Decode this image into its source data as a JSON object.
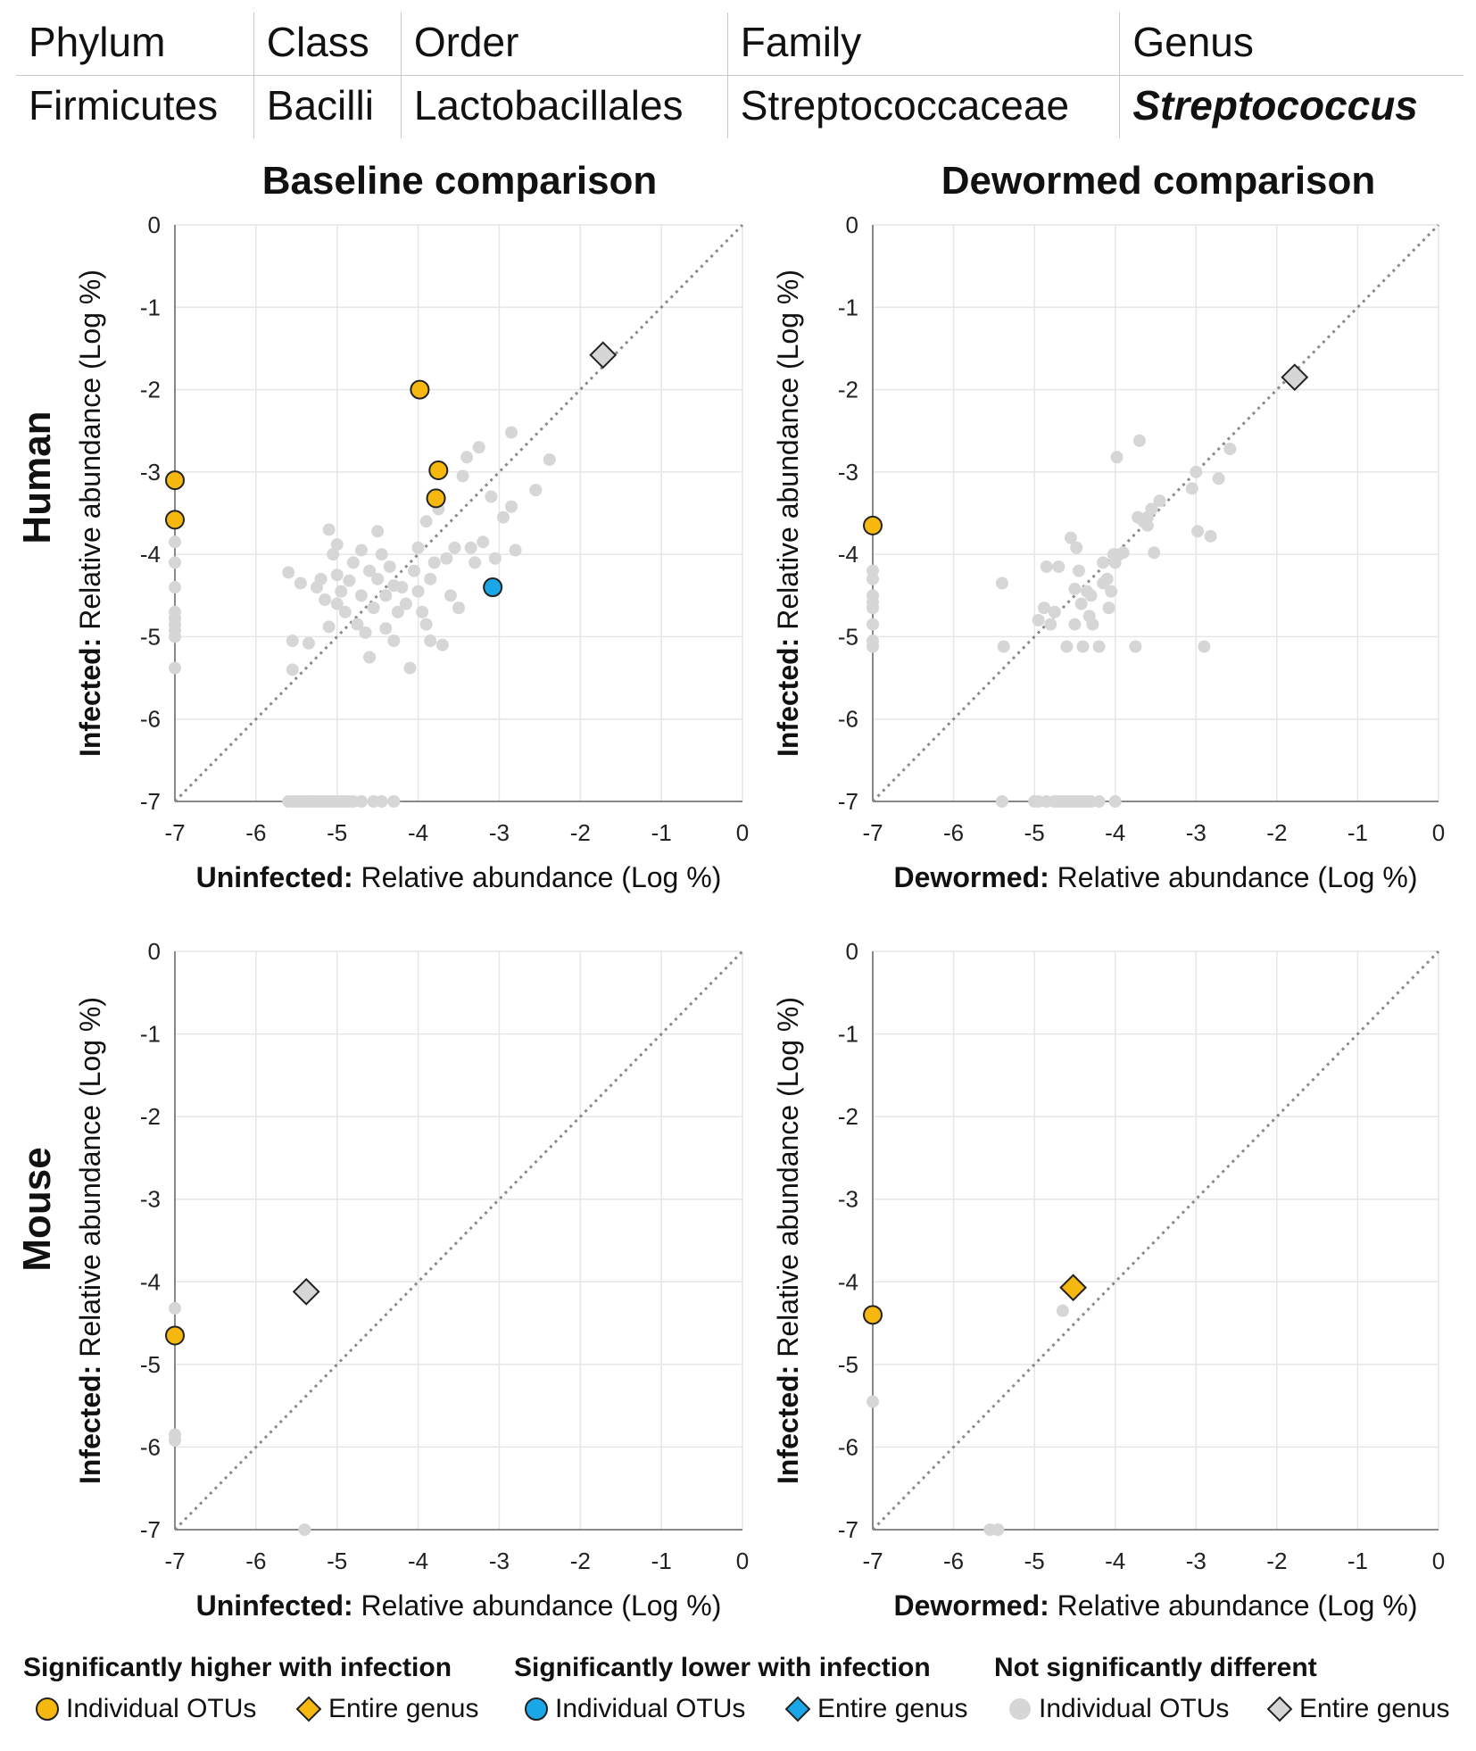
{
  "taxonomy": {
    "headers": [
      "Phylum",
      "Class",
      "Order",
      "Family",
      "Genus"
    ],
    "values": [
      "Firmicutes",
      "Bacilli",
      "Lactobacillales",
      "Streptococcaceae",
      "Streptococcus"
    ]
  },
  "column_titles": [
    "Baseline comparison",
    "Dewormed comparison"
  ],
  "row_titles": [
    "Human",
    "Mouse"
  ],
  "axis": {
    "y_bold": "Infected:",
    "y_rest": " Relative abundance (Log %)",
    "ticks": [
      -7,
      -6,
      -5,
      -4,
      -3,
      -2,
      -1,
      0
    ]
  },
  "colors": {
    "sig_higher": "#F6B80F",
    "sig_lower": "#1AA7E8",
    "not_sig": "#D6D6D6",
    "diagonal": "#8a8a8a",
    "grid": "#e6e6e6"
  },
  "legend": {
    "groups": [
      {
        "heading": "Significantly higher with infection",
        "otu_label": "Individual OTUs",
        "genus_label": "Entire genus",
        "color_key": "sig_higher"
      },
      {
        "heading": "Significantly lower with infection",
        "otu_label": "Individual OTUs",
        "genus_label": "Entire genus",
        "color_key": "sig_lower"
      },
      {
        "heading": "Not significantly different",
        "otu_label": "Individual OTUs",
        "genus_label": "Entire genus",
        "color_key": "not_sig"
      }
    ]
  },
  "chart_data": [
    {
      "type": "scatter",
      "title": "Human – Baseline comparison",
      "xlabel_bold": "Uninfected:",
      "xlabel_rest": " Relative abundance (Log %)",
      "ylabel_bold": "Infected:",
      "ylabel_rest": " Relative abundance (Log %)",
      "xlim": [
        -7,
        0
      ],
      "ylim": [
        -7,
        0
      ],
      "sig_higher_otus": [
        [
          -7.0,
          -3.1
        ],
        [
          -7.0,
          -3.58
        ],
        [
          -3.98,
          -2.0
        ],
        [
          -3.75,
          -2.98
        ],
        [
          -3.78,
          -3.32
        ]
      ],
      "sig_lower_otus": [
        [
          -3.08,
          -4.4
        ]
      ],
      "not_sig_otus": [
        [
          -7.0,
          -3.85
        ],
        [
          -7.0,
          -4.1
        ],
        [
          -7.0,
          -4.4
        ],
        [
          -7.0,
          -4.7
        ],
        [
          -7.0,
          -4.78
        ],
        [
          -7.0,
          -4.85
        ],
        [
          -7.0,
          -4.92
        ],
        [
          -7.0,
          -5.0
        ],
        [
          -7.0,
          -5.38
        ],
        [
          -5.6,
          -7.0
        ],
        [
          -5.55,
          -7.0
        ],
        [
          -5.5,
          -7.0
        ],
        [
          -5.45,
          -7.0
        ],
        [
          -5.4,
          -7.0
        ],
        [
          -5.35,
          -7.0
        ],
        [
          -5.3,
          -7.0
        ],
        [
          -5.25,
          -7.0
        ],
        [
          -5.2,
          -7.0
        ],
        [
          -5.15,
          -7.0
        ],
        [
          -5.1,
          -7.0
        ],
        [
          -5.05,
          -7.0
        ],
        [
          -5.0,
          -7.0
        ],
        [
          -4.95,
          -7.0
        ],
        [
          -4.9,
          -7.0
        ],
        [
          -4.85,
          -7.0
        ],
        [
          -4.8,
          -7.0
        ],
        [
          -4.7,
          -7.0
        ],
        [
          -4.55,
          -7.0
        ],
        [
          -4.45,
          -7.0
        ],
        [
          -4.3,
          -7.0
        ],
        [
          -5.6,
          -4.22
        ],
        [
          -5.55,
          -5.05
        ],
        [
          -5.55,
          -5.4
        ],
        [
          -5.35,
          -5.08
        ],
        [
          -5.25,
          -4.4
        ],
        [
          -5.2,
          -4.3
        ],
        [
          -5.15,
          -4.55
        ],
        [
          -5.1,
          -3.7
        ],
        [
          -5.1,
          -4.88
        ],
        [
          -5.05,
          -4.0
        ],
        [
          -5.0,
          -3.88
        ],
        [
          -5.0,
          -4.25
        ],
        [
          -5.0,
          -4.6
        ],
        [
          -4.95,
          -4.45
        ],
        [
          -4.9,
          -4.7
        ],
        [
          -4.85,
          -4.32
        ],
        [
          -4.8,
          -4.1
        ],
        [
          -4.75,
          -4.85
        ],
        [
          -4.7,
          -4.5
        ],
        [
          -4.65,
          -4.95
        ],
        [
          -4.6,
          -4.2
        ],
        [
          -4.55,
          -4.65
        ],
        [
          -4.5,
          -3.72
        ],
        [
          -4.5,
          -4.3
        ],
        [
          -4.45,
          -4.0
        ],
        [
          -4.4,
          -4.5
        ],
        [
          -4.4,
          -4.9
        ],
        [
          -4.35,
          -4.15
        ],
        [
          -4.3,
          -4.38
        ],
        [
          -4.3,
          -5.05
        ],
        [
          -4.25,
          -4.7
        ],
        [
          -4.2,
          -4.4
        ],
        [
          -4.15,
          -4.6
        ],
        [
          -4.1,
          -5.38
        ],
        [
          -4.05,
          -4.2
        ],
        [
          -4.0,
          -4.45
        ],
        [
          -4.0,
          -3.92
        ],
        [
          -3.95,
          -4.7
        ],
        [
          -3.9,
          -3.6
        ],
        [
          -3.85,
          -4.3
        ],
        [
          -3.85,
          -5.05
        ],
        [
          -3.8,
          -4.1
        ],
        [
          -3.75,
          -3.45
        ],
        [
          -3.7,
          -5.1
        ],
        [
          -3.65,
          -4.05
        ],
        [
          -3.6,
          -4.5
        ],
        [
          -3.55,
          -3.92
        ],
        [
          -3.5,
          -4.65
        ],
        [
          -3.45,
          -3.05
        ],
        [
          -3.4,
          -2.82
        ],
        [
          -3.35,
          -3.92
        ],
        [
          -3.3,
          -4.1
        ],
        [
          -3.25,
          -2.7
        ],
        [
          -3.2,
          -3.85
        ],
        [
          -3.1,
          -3.3
        ],
        [
          -3.05,
          -4.05
        ],
        [
          -2.95,
          -3.55
        ],
        [
          -2.85,
          -2.52
        ],
        [
          -2.85,
          -3.42
        ],
        [
          -2.8,
          -3.95
        ],
        [
          -2.55,
          -3.22
        ],
        [
          -2.38,
          -2.85
        ],
        [
          -4.6,
          -5.25
        ],
        [
          -5.45,
          -4.35
        ],
        [
          -4.7,
          -3.95
        ],
        [
          -3.9,
          -4.85
        ]
      ],
      "sig_higher_genus": [],
      "sig_lower_genus": [],
      "not_sig_genus": [
        [
          -1.72,
          -1.58
        ]
      ]
    },
    {
      "type": "scatter",
      "title": "Human – Dewormed comparison",
      "xlabel_bold": "Dewormed:",
      "xlabel_rest": " Relative abundance (Log %)",
      "ylabel_bold": "Infected:",
      "ylabel_rest": " Relative abundance (Log %)",
      "xlim": [
        -7,
        0
      ],
      "ylim": [
        -7,
        0
      ],
      "sig_higher_otus": [
        [
          -7.0,
          -3.65
        ]
      ],
      "sig_lower_otus": [],
      "not_sig_otus": [
        [
          -7.0,
          -4.2
        ],
        [
          -7.0,
          -4.3
        ],
        [
          -7.0,
          -4.5
        ],
        [
          -7.0,
          -4.58
        ],
        [
          -7.0,
          -4.65
        ],
        [
          -7.0,
          -4.85
        ],
        [
          -7.0,
          -5.05
        ],
        [
          -7.0,
          -5.12
        ],
        [
          -5.4,
          -7.0
        ],
        [
          -5.0,
          -7.0
        ],
        [
          -4.95,
          -7.0
        ],
        [
          -4.85,
          -7.0
        ],
        [
          -4.75,
          -7.0
        ],
        [
          -4.7,
          -7.0
        ],
        [
          -4.65,
          -7.0
        ],
        [
          -4.6,
          -7.0
        ],
        [
          -4.55,
          -7.0
        ],
        [
          -4.5,
          -7.0
        ],
        [
          -4.45,
          -7.0
        ],
        [
          -4.4,
          -7.0
        ],
        [
          -4.35,
          -7.0
        ],
        [
          -4.3,
          -7.0
        ],
        [
          -4.2,
          -7.0
        ],
        [
          -4.0,
          -7.0
        ],
        [
          -5.4,
          -4.35
        ],
        [
          -5.38,
          -5.12
        ],
        [
          -4.95,
          -4.8
        ],
        [
          -4.88,
          -4.65
        ],
        [
          -4.85,
          -4.15
        ],
        [
          -4.8,
          -4.85
        ],
        [
          -4.75,
          -4.7
        ],
        [
          -4.7,
          -4.15
        ],
        [
          -4.6,
          -5.12
        ],
        [
          -4.55,
          -3.8
        ],
        [
          -4.5,
          -4.42
        ],
        [
          -4.5,
          -4.85
        ],
        [
          -4.48,
          -3.92
        ],
        [
          -4.45,
          -4.2
        ],
        [
          -4.42,
          -4.6
        ],
        [
          -4.4,
          -5.12
        ],
        [
          -4.35,
          -4.45
        ],
        [
          -4.32,
          -4.75
        ],
        [
          -4.3,
          -4.5
        ],
        [
          -4.28,
          -4.85
        ],
        [
          -4.2,
          -5.12
        ],
        [
          -4.15,
          -4.1
        ],
        [
          -4.1,
          -4.3
        ],
        [
          -4.08,
          -4.65
        ],
        [
          -4.05,
          -4.45
        ],
        [
          -4.02,
          -4.0
        ],
        [
          -3.98,
          -2.82
        ],
        [
          -3.95,
          -4.0
        ],
        [
          -3.9,
          -3.98
        ],
        [
          -3.75,
          -5.12
        ],
        [
          -3.72,
          -3.55
        ],
        [
          -3.7,
          -2.62
        ],
        [
          -3.65,
          -3.6
        ],
        [
          -3.6,
          -3.55
        ],
        [
          -3.55,
          -3.45
        ],
        [
          -3.52,
          -3.98
        ],
        [
          -3.45,
          -3.35
        ],
        [
          -3.05,
          -3.2
        ],
        [
          -3.0,
          -3.0
        ],
        [
          -2.98,
          -3.72
        ],
        [
          -2.9,
          -5.12
        ],
        [
          -2.82,
          -3.78
        ],
        [
          -2.72,
          -3.08
        ],
        [
          -2.58,
          -2.72
        ],
        [
          -4.0,
          -4.1
        ],
        [
          -4.15,
          -4.35
        ],
        [
          -3.6,
          -3.65
        ]
      ],
      "sig_higher_genus": [],
      "sig_lower_genus": [],
      "not_sig_genus": [
        [
          -1.78,
          -1.85
        ]
      ]
    },
    {
      "type": "scatter",
      "title": "Mouse – Baseline comparison",
      "xlabel_bold": "Uninfected:",
      "xlabel_rest": " Relative abundance (Log %)",
      "ylabel_bold": "Infected:",
      "ylabel_rest": " Relative abundance (Log %)",
      "xlim": [
        -7,
        0
      ],
      "ylim": [
        -7,
        0
      ],
      "sig_higher_otus": [
        [
          -7.0,
          -4.65
        ]
      ],
      "sig_lower_otus": [],
      "not_sig_otus": [
        [
          -7.0,
          -4.32
        ],
        [
          -7.0,
          -5.85
        ],
        [
          -7.0,
          -5.92
        ],
        [
          -5.4,
          -7.0
        ]
      ],
      "sig_higher_genus": [],
      "sig_lower_genus": [],
      "not_sig_genus": [
        [
          -5.38,
          -4.12
        ]
      ]
    },
    {
      "type": "scatter",
      "title": "Mouse – Dewormed comparison",
      "xlabel_bold": "Dewormed:",
      "xlabel_rest": " Relative abundance (Log %)",
      "ylabel_bold": "Infected:",
      "ylabel_rest": " Relative abundance (Log %)",
      "xlim": [
        -7,
        0
      ],
      "ylim": [
        -7,
        0
      ],
      "sig_higher_otus": [
        [
          -7.0,
          -4.4
        ]
      ],
      "sig_lower_otus": [],
      "not_sig_otus": [
        [
          -7.0,
          -5.45
        ],
        [
          -5.55,
          -7.0
        ],
        [
          -5.45,
          -7.0
        ],
        [
          -4.65,
          -4.35
        ]
      ],
      "sig_higher_genus": [
        [
          -4.52,
          -4.07
        ]
      ],
      "sig_lower_genus": [],
      "not_sig_genus": []
    }
  ]
}
